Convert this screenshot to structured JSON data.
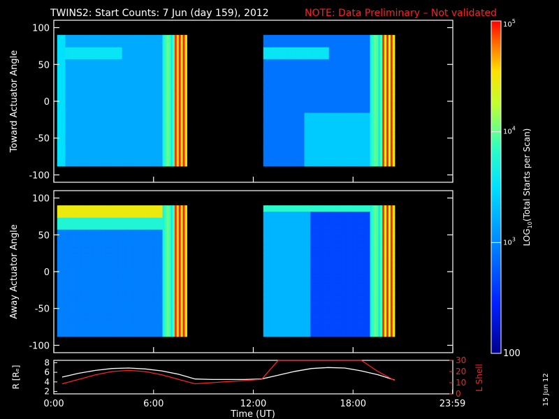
{
  "title": "TWINS2: Start Counts:  7 Jun (day 159), 2012",
  "note": "NOTE: Data Preliminary – Not validated",
  "date_stamp": "15 Jun 12",
  "colors": {
    "background": "#000000",
    "axes": "#ffffff",
    "note": "#ff2020",
    "lshell": "#ff2020",
    "radius": "#ffffff"
  },
  "chart_data": [
    {
      "type": "heatmap",
      "panel": "toward",
      "ylabel": "Toward Actuator Angle",
      "ylim": [
        -110,
        110
      ],
      "yticks": [
        -100,
        -50,
        0,
        50,
        100
      ],
      "xlim_hours": [
        0,
        24
      ],
      "data_ranges_hours": [
        [
          0.2,
          8.0
        ],
        [
          12.6,
          20.5
        ]
      ],
      "angle_range": [
        -88,
        90
      ],
      "colorbar": {
        "label": "LOG10(Total Starts per Scan)",
        "scale": "log",
        "range": [
          100,
          100000
        ],
        "tick_labels": [
          "100",
          "10^3",
          "10^4",
          "10^5"
        ]
      }
    },
    {
      "type": "heatmap",
      "panel": "away",
      "ylabel": "Away Actuator Angle",
      "ylim": [
        -110,
        110
      ],
      "yticks": [
        -100,
        -50,
        0,
        50,
        100
      ],
      "xlim_hours": [
        0,
        24
      ],
      "data_ranges_hours": [
        [
          0.2,
          8.0
        ],
        [
          12.6,
          20.5
        ]
      ],
      "angle_range": [
        -88,
        90
      ]
    },
    {
      "type": "line",
      "panel": "orbit",
      "xlabel": "Time (UT)",
      "xticks": [
        "0:00",
        "6:00",
        "12:00",
        "18:00",
        "23:59"
      ],
      "x_hours": [
        0,
        6,
        12,
        18,
        23.98
      ],
      "left_axis": {
        "label": "R [Rₑ]",
        "ylim": [
          1.5,
          8.5
        ],
        "ticks": [
          2,
          4,
          6,
          8
        ]
      },
      "right_axis": {
        "label": "L Shell",
        "ylim": [
          0,
          30
        ],
        "ticks": [
          0,
          10,
          20,
          30
        ]
      },
      "series": [
        {
          "name": "R [Rₑ]",
          "axis": "left",
          "x": [
            0.5,
            1.5,
            2.5,
            3.5,
            4.5,
            5.5,
            6.5,
            7.5,
            8.5,
            9.5,
            10.5,
            11.5,
            12.5,
            13.5,
            14.5,
            15.5,
            16.5,
            17.5,
            18.5,
            19.5,
            20.5
          ],
          "y": [
            5.0,
            5.8,
            6.4,
            6.8,
            6.9,
            6.7,
            6.3,
            5.6,
            4.6,
            4.5,
            4.5,
            4.5,
            4.6,
            5.4,
            6.2,
            6.8,
            7.0,
            6.9,
            6.3,
            5.5,
            4.4
          ]
        },
        {
          "name": "L Shell",
          "axis": "right",
          "x": [
            0.5,
            1.5,
            2.5,
            3.5,
            4.5,
            5.5,
            6.5,
            7.5,
            8.5,
            9.5,
            10.5,
            11.5,
            12.5,
            13.5,
            18.5,
            19.0,
            19.5,
            20.0,
            20.5
          ],
          "y": [
            9,
            13,
            17,
            20,
            21,
            20,
            17,
            13,
            9,
            10,
            11,
            12,
            13,
            30,
            30,
            25,
            20,
            16,
            12
          ]
        }
      ]
    }
  ]
}
